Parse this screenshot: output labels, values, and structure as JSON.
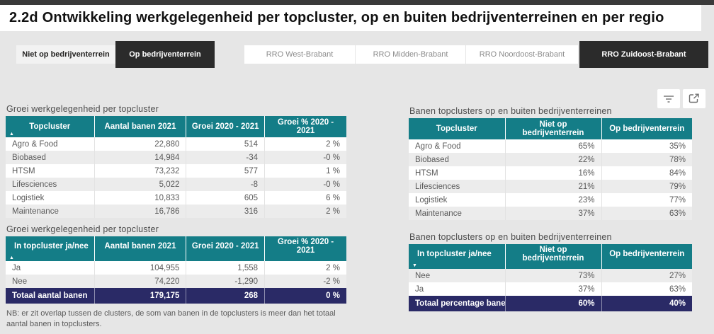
{
  "page": {
    "title": "2.2d Ontwikkeling werkgelegenheid per topcluster, op en buiten bedrijventerreinen en per regio",
    "footnote": "NB: er zit overlap tussen de clusters, de som van banen in de topclusters is meer dan het totaal aantal banen in topclusters."
  },
  "colors": {
    "header_teal": "#147d87",
    "total_navy": "#2a2a66",
    "selected_dark": "#2b2b2b",
    "page_bg": "#e6e6e6"
  },
  "icons": {
    "sort_asc": "▲",
    "sort_desc": "▼"
  },
  "filters": {
    "terrain_buttons": [
      {
        "label": "Niet op bedrijventerrein",
        "selected": false
      },
      {
        "label": "Op bedrijventerrein",
        "selected": true
      }
    ],
    "region_buttons": [
      {
        "label": "RRO West-Brabant",
        "selected": false
      },
      {
        "label": "RRO Midden-Brabant",
        "selected": false
      },
      {
        "label": "RRO Noordoost-Brabant",
        "selected": false
      },
      {
        "label": "RRO Zuidoost-Brabant",
        "selected": true
      }
    ]
  },
  "tables": {
    "groei_topcluster": {
      "title": "Groei werkgelegenheid per topcluster",
      "columns": [
        "Topcluster",
        "Aantal banen 2021",
        "Groei 2020 - 2021",
        "Groei % 2020 - 2021"
      ],
      "sort": {
        "column": "Topcluster",
        "direction": "ascending"
      },
      "rows": [
        [
          "Agro & Food",
          "22,880",
          "514",
          "2 %"
        ],
        [
          "Biobased",
          "14,984",
          "-34",
          "-0 %"
        ],
        [
          "HTSM",
          "73,232",
          "577",
          "1 %"
        ],
        [
          "Lifesciences",
          "5,022",
          "-8",
          "-0 %"
        ],
        [
          "Logistiek",
          "10,833",
          "605",
          "6 %"
        ],
        [
          "Maintenance",
          "16,786",
          "316",
          "2 %"
        ]
      ]
    },
    "groei_janee": {
      "title": "Groei werkgelegenheid per topcluster",
      "columns": [
        "In topcluster ja/nee",
        "Aantal banen 2021",
        "Groei 2020 - 2021",
        "Groei % 2020 - 2021"
      ],
      "sort": {
        "column": "In topcluster ja/nee",
        "direction": "ascending"
      },
      "rows": [
        [
          "Ja",
          "104,955",
          "1,558",
          "2 %"
        ],
        [
          "Nee",
          "74,220",
          "-1,290",
          "-2 %"
        ]
      ],
      "total": [
        "Totaal aantal banen",
        "179,175",
        "268",
        "0 %"
      ]
    },
    "banen_topcluster": {
      "title": "Banen topclusters op en buiten bedrijventerreinen",
      "columns": [
        "Topcluster",
        "Niet op bedrijventerrein",
        "Op bedrijventerrein"
      ],
      "rows": [
        [
          "Agro & Food",
          "65%",
          "35%"
        ],
        [
          "Biobased",
          "22%",
          "78%"
        ],
        [
          "HTSM",
          "16%",
          "84%"
        ],
        [
          "Lifesciences",
          "21%",
          "79%"
        ],
        [
          "Logistiek",
          "23%",
          "77%"
        ],
        [
          "Maintenance",
          "37%",
          "63%"
        ]
      ]
    },
    "banen_janee": {
      "title": "Banen topclusters op en buiten bedrijventerreinen",
      "columns": [
        "In topcluster ja/nee",
        "Niet op bedrijventerrein",
        "Op bedrijventerrein"
      ],
      "sort": {
        "column": "In topcluster ja/nee",
        "direction": "descending"
      },
      "rows": [
        [
          "Nee",
          "73%",
          "27%"
        ],
        [
          "Ja",
          "37%",
          "63%"
        ]
      ],
      "total": [
        "Totaal percentage banen",
        "60%",
        "40%"
      ]
    }
  }
}
